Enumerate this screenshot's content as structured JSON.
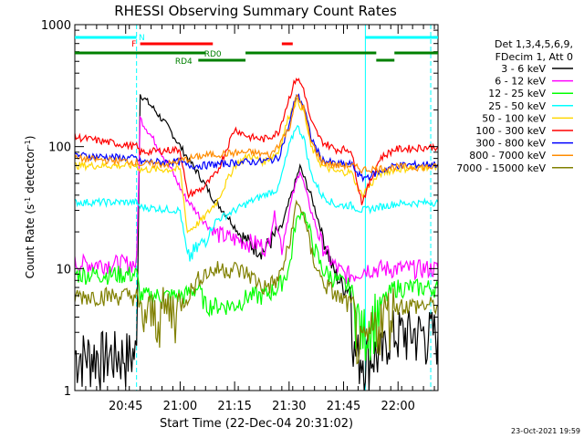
{
  "chart_data": {
    "type": "line",
    "title": "RHESSI Observing Summary Count Rates",
    "xlabel": "Start Time (22-Dec-04 20:31:02)",
    "ylabel_main": "Count Rate (s",
    "ylabel_sup": "-1",
    "ylabel_tail": " detector",
    "ylabel_end": ")",
    "yscale": "log",
    "ylim": [
      1,
      1000
    ],
    "xlim_min": [
      0,
      100
    ],
    "y_ticks": [
      {
        "v": 1,
        "label": "1"
      },
      {
        "v": 10,
        "label": "10"
      },
      {
        "v": 100,
        "label": "100"
      },
      {
        "v": 1000,
        "label": "1000"
      }
    ],
    "x_ticks": [
      {
        "t": 14,
        "label": "20:45"
      },
      {
        "t": 29,
        "label": "21:00"
      },
      {
        "t": 44,
        "label": "21:15"
      },
      {
        "t": 59,
        "label": "21:30"
      },
      {
        "t": 74,
        "label": "21:45"
      },
      {
        "t": 89,
        "label": "22:00"
      }
    ],
    "legend_header": [
      "Det 1,3,4,5,6,9,",
      "FDecim 1, Att 0"
    ],
    "legend_position": "right",
    "timestamp": "23-Oct-2021 19:59",
    "flags": [
      {
        "label": "N",
        "color": "#00ffff",
        "segments": [
          [
            0,
            17
          ],
          [
            80,
            100
          ]
        ]
      },
      {
        "label": "F",
        "color": "#ff0000",
        "segments": [
          [
            18,
            38
          ],
          [
            57,
            60
          ]
        ]
      },
      {
        "label": "RD0",
        "color": "#008000",
        "segments": [
          [
            0,
            36
          ],
          [
            47,
            83
          ],
          [
            88,
            100
          ]
        ]
      },
      {
        "label": "RD4",
        "color": "#008000",
        "segments": [
          [
            34,
            47
          ],
          [
            83,
            88
          ]
        ]
      }
    ],
    "series": [
      {
        "name": "3 - 6 keV",
        "color": "#000000",
        "points": [
          [
            0,
            2
          ],
          [
            17,
            2
          ],
          [
            18,
            270
          ],
          [
            22,
            200
          ],
          [
            26,
            140
          ],
          [
            30,
            90
          ],
          [
            34,
            60
          ],
          [
            38,
            38
          ],
          [
            42,
            27
          ],
          [
            45,
            20
          ],
          [
            48,
            16
          ],
          [
            52,
            14
          ],
          [
            54,
            17
          ],
          [
            57,
            22
          ],
          [
            59,
            35
          ],
          [
            62,
            68
          ],
          [
            65,
            40
          ],
          [
            68,
            20
          ],
          [
            71,
            10
          ],
          [
            74,
            7
          ],
          [
            76,
            7
          ],
          [
            77,
            2
          ],
          [
            85,
            2
          ],
          [
            86,
            3
          ],
          [
            100,
            3
          ]
        ]
      },
      {
        "name": "6 - 12 keV",
        "color": "#ff00ff",
        "points": [
          [
            0,
            11
          ],
          [
            17,
            11
          ],
          [
            18,
            170
          ],
          [
            22,
            110
          ],
          [
            26,
            70
          ],
          [
            30,
            40
          ],
          [
            34,
            28
          ],
          [
            38,
            20
          ],
          [
            42,
            18
          ],
          [
            46,
            17
          ],
          [
            50,
            16
          ],
          [
            53,
            15
          ],
          [
            55,
            28
          ],
          [
            57,
            15
          ],
          [
            60,
            40
          ],
          [
            62,
            65
          ],
          [
            65,
            30
          ],
          [
            68,
            16
          ],
          [
            71,
            11
          ],
          [
            74,
            9
          ],
          [
            77,
            9
          ],
          [
            80,
            10
          ],
          [
            100,
            10
          ]
        ]
      },
      {
        "name": "12 - 25 keV",
        "color": "#00ff00",
        "points": [
          [
            0,
            9
          ],
          [
            17,
            9
          ],
          [
            18,
            6
          ],
          [
            30,
            6
          ],
          [
            34,
            7
          ],
          [
            36,
            5
          ],
          [
            40,
            5
          ],
          [
            44,
            5
          ],
          [
            48,
            6
          ],
          [
            52,
            6
          ],
          [
            56,
            7
          ],
          [
            59,
            10
          ],
          [
            61,
            25
          ],
          [
            63,
            30
          ],
          [
            65,
            18
          ],
          [
            68,
            10
          ],
          [
            72,
            8
          ],
          [
            76,
            7
          ],
          [
            79,
            3
          ],
          [
            84,
            5
          ],
          [
            88,
            7
          ],
          [
            100,
            7
          ]
        ]
      },
      {
        "name": "25 - 50 keV",
        "color": "#00ffff",
        "points": [
          [
            0,
            35
          ],
          [
            17,
            35
          ],
          [
            18,
            32
          ],
          [
            29,
            30
          ],
          [
            31,
            12
          ],
          [
            35,
            16
          ],
          [
            39,
            25
          ],
          [
            44,
            30
          ],
          [
            48,
            35
          ],
          [
            52,
            40
          ],
          [
            56,
            45
          ],
          [
            59,
            100
          ],
          [
            61,
            150
          ],
          [
            63,
            120
          ],
          [
            65,
            60
          ],
          [
            68,
            40
          ],
          [
            72,
            33
          ],
          [
            76,
            33
          ],
          [
            79,
            30
          ],
          [
            84,
            32
          ],
          [
            88,
            34
          ],
          [
            100,
            35
          ]
        ]
      },
      {
        "name": "50 - 100 keV",
        "color": "#ffd700",
        "points": [
          [
            0,
            70
          ],
          [
            17,
            70
          ],
          [
            18,
            65
          ],
          [
            29,
            65
          ],
          [
            31,
            20
          ],
          [
            35,
            25
          ],
          [
            39,
            35
          ],
          [
            44,
            70
          ],
          [
            48,
            85
          ],
          [
            52,
            75
          ],
          [
            56,
            90
          ],
          [
            59,
            180
          ],
          [
            61,
            240
          ],
          [
            63,
            200
          ],
          [
            65,
            100
          ],
          [
            68,
            70
          ],
          [
            72,
            62
          ],
          [
            76,
            62
          ],
          [
            79,
            40
          ],
          [
            84,
            60
          ],
          [
            88,
            65
          ],
          [
            100,
            70
          ]
        ]
      },
      {
        "name": "100 - 300 keV",
        "color": "#ff0000",
        "points": [
          [
            0,
            120
          ],
          [
            17,
            100
          ],
          [
            18,
            90
          ],
          [
            29,
            95
          ],
          [
            31,
            40
          ],
          [
            35,
            45
          ],
          [
            39,
            60
          ],
          [
            44,
            140
          ],
          [
            48,
            120
          ],
          [
            52,
            115
          ],
          [
            56,
            130
          ],
          [
            59,
            250
          ],
          [
            61,
            370
          ],
          [
            63,
            300
          ],
          [
            65,
            160
          ],
          [
            68,
            110
          ],
          [
            72,
            95
          ],
          [
            76,
            95
          ],
          [
            79,
            35
          ],
          [
            84,
            80
          ],
          [
            88,
            95
          ],
          [
            100,
            100
          ]
        ]
      },
      {
        "name": "300 - 800 keV",
        "color": "#0000ff",
        "points": [
          [
            0,
            85
          ],
          [
            17,
            80
          ],
          [
            18,
            75
          ],
          [
            29,
            75
          ],
          [
            31,
            70
          ],
          [
            35,
            70
          ],
          [
            40,
            72
          ],
          [
            44,
            74
          ],
          [
            48,
            75
          ],
          [
            52,
            76
          ],
          [
            56,
            80
          ],
          [
            59,
            150
          ],
          [
            61,
            270
          ],
          [
            63,
            220
          ],
          [
            65,
            120
          ],
          [
            68,
            78
          ],
          [
            72,
            72
          ],
          [
            76,
            72
          ],
          [
            79,
            55
          ],
          [
            84,
            62
          ],
          [
            88,
            70
          ],
          [
            100,
            72
          ]
        ]
      },
      {
        "name": "800 - 7000 keV",
        "color": "#ff8c00",
        "points": [
          [
            0,
            80
          ],
          [
            17,
            75
          ],
          [
            18,
            72
          ],
          [
            26,
            72
          ],
          [
            30,
            78
          ],
          [
            36,
            85
          ],
          [
            42,
            88
          ],
          [
            48,
            90
          ],
          [
            54,
            85
          ],
          [
            59,
            140
          ],
          [
            61,
            260
          ],
          [
            63,
            210
          ],
          [
            65,
            110
          ],
          [
            68,
            75
          ],
          [
            72,
            70
          ],
          [
            76,
            70
          ],
          [
            79,
            65
          ],
          [
            84,
            66
          ],
          [
            88,
            68
          ],
          [
            100,
            68
          ]
        ]
      },
      {
        "name": "7000 - 15000 keV",
        "color": "#808000",
        "points": [
          [
            0,
            6
          ],
          [
            17,
            6
          ],
          [
            18,
            4
          ],
          [
            29,
            5
          ],
          [
            31,
            6
          ],
          [
            35,
            9
          ],
          [
            40,
            10
          ],
          [
            44,
            10
          ],
          [
            48,
            9
          ],
          [
            52,
            7
          ],
          [
            56,
            8
          ],
          [
            59,
            15
          ],
          [
            61,
            35
          ],
          [
            63,
            28
          ],
          [
            65,
            14
          ],
          [
            68,
            8
          ],
          [
            72,
            6
          ],
          [
            76,
            5
          ],
          [
            79,
            2
          ],
          [
            84,
            4
          ],
          [
            88,
            5
          ],
          [
            100,
            5
          ]
        ]
      }
    ]
  }
}
